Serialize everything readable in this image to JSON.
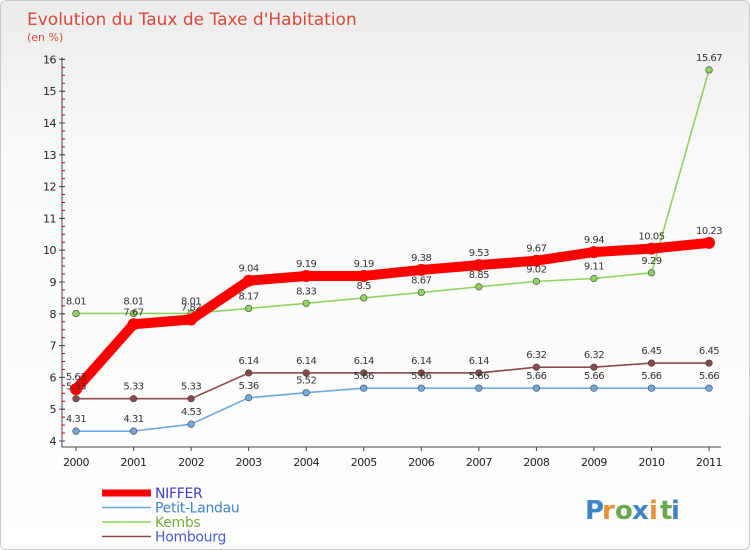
{
  "chart_data": {
    "type": "line",
    "title": "Evolution du Taux de Taxe d'Habitation",
    "subtitle": "(en %)",
    "x": [
      "2000",
      "2001",
      "2002",
      "2003",
      "2004",
      "2005",
      "2006",
      "2007",
      "2008",
      "2009",
      "2010",
      "2011"
    ],
    "ylim": [
      4,
      16
    ],
    "y_ticks": [
      4,
      5,
      6,
      7,
      8,
      9,
      10,
      11,
      12,
      13,
      14,
      15,
      16
    ],
    "grid": false,
    "legend_position": "bottom-left",
    "series": [
      {
        "name": "NIFFER",
        "color": "#ff0000",
        "values": [
          5.63,
          7.67,
          7.82,
          9.04,
          9.19,
          9.19,
          9.38,
          9.53,
          9.67,
          9.94,
          10.05,
          10.23
        ],
        "labels": [
          "5.63",
          "7.67",
          "7.82",
          "9.04",
          "9.19",
          "9.19",
          "9.38",
          "9.53",
          "9.67",
          "9.94",
          "10.05",
          "10.23"
        ]
      },
      {
        "name": "Petit-Landau",
        "color": "#6fa8dc",
        "values": [
          4.31,
          4.31,
          4.53,
          5.36,
          5.52,
          5.66,
          5.66,
          5.66,
          5.66,
          5.66,
          5.66,
          5.66
        ],
        "labels": [
          "4.31",
          "4.31",
          "4.53",
          "5.36",
          "5.52",
          "5.66",
          "5.66",
          "5.66",
          "5.66",
          "5.66",
          "5.66",
          "5.66"
        ]
      },
      {
        "name": "Kembs",
        "color": "#8fd35f",
        "values": [
          8.01,
          8.01,
          8.01,
          8.17,
          8.33,
          8.5,
          8.67,
          8.85,
          9.02,
          9.11,
          9.29,
          15.67
        ],
        "labels": [
          "8.01",
          "8.01",
          "8.01",
          "8.17",
          "8.33",
          "8.5",
          "8.67",
          "8.85",
          "9.02",
          "9.11",
          "9.29",
          "15.67"
        ]
      },
      {
        "name": "Hombourg",
        "color": "#8b4a4a",
        "values": [
          5.33,
          5.33,
          5.33,
          6.14,
          6.14,
          6.14,
          6.14,
          6.14,
          6.32,
          6.32,
          6.45,
          6.45
        ],
        "labels": [
          "5.33",
          "5.33",
          "5.33",
          "6.14",
          "6.14",
          "6.14",
          "6.14",
          "6.14",
          "6.32",
          "6.32",
          "6.45",
          "6.45"
        ]
      }
    ]
  },
  "logo": {
    "letters": [
      "P",
      "r",
      "o",
      "x",
      "i",
      "t",
      "i"
    ],
    "colors": [
      "#3d85c6",
      "#e69138",
      "#6aa84f",
      "#3d85c6",
      "#e69138",
      "#6aa84f",
      "#3d85c6"
    ]
  }
}
